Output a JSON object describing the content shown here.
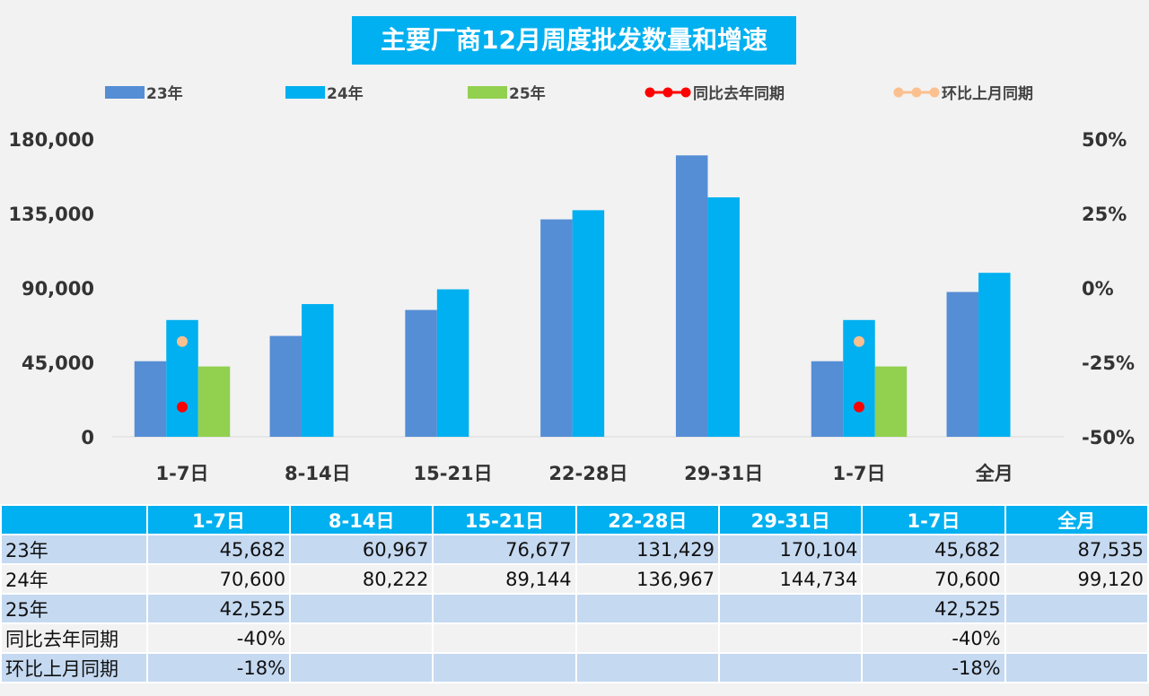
{
  "chart_data": {
    "type": "bar",
    "title": "主要厂商12月周度批发数量和增速",
    "categories": [
      "1-7日",
      "8-14日",
      "15-21日",
      "22-28日",
      "29-31日",
      "1-7日",
      "全月"
    ],
    "series": [
      {
        "name": "23年",
        "type": "bar",
        "color": "#558ed5",
        "values": [
          45682,
          60967,
          76677,
          131429,
          170104,
          45682,
          87535
        ]
      },
      {
        "name": "24年",
        "type": "bar",
        "color": "#00b0f0",
        "values": [
          70600,
          80222,
          89144,
          136967,
          144734,
          70600,
          99120
        ]
      },
      {
        "name": "25年",
        "type": "bar",
        "color": "#92d050",
        "values": [
          42525,
          null,
          null,
          null,
          null,
          42525,
          null
        ]
      },
      {
        "name": "同比去年同期",
        "type": "line",
        "axis": "right",
        "color": "#ff0000",
        "values": [
          -40,
          null,
          null,
          null,
          null,
          -40,
          null
        ]
      },
      {
        "name": "环比上月同期",
        "type": "line",
        "axis": "right",
        "color": "#fac090",
        "values": [
          -18,
          null,
          null,
          null,
          null,
          -18,
          null
        ]
      }
    ],
    "y_left": {
      "range": [
        0,
        180000
      ],
      "ticks": [
        "180,000",
        "135,000",
        "90,000",
        "45,000",
        "0"
      ]
    },
    "y_right": {
      "range": [
        -50,
        50
      ],
      "unit": "%",
      "ticks": [
        "50%",
        "25%",
        "0%",
        "-25%",
        "-50%"
      ]
    },
    "legend_position": "top"
  },
  "table": {
    "header": [
      "",
      "1-7日",
      "8-14日",
      "15-21日",
      "22-28日",
      "29-31日",
      "1-7日",
      "全月"
    ],
    "rows": [
      [
        "23年",
        "45,682",
        "60,967",
        "76,677",
        "131,429",
        "170,104",
        "45,682",
        "87,535"
      ],
      [
        "24年",
        "70,600",
        "80,222",
        "89,144",
        "136,967",
        "144,734",
        "70,600",
        "99,120"
      ],
      [
        "25年",
        "42,525",
        "",
        "",
        "",
        "",
        "42,525",
        ""
      ],
      [
        "同比去年同期",
        "-40%",
        "",
        "",
        "",
        "",
        "-40%",
        ""
      ],
      [
        "环比上月同期",
        "-18%",
        "",
        "",
        "",
        "",
        "-18%",
        ""
      ]
    ]
  }
}
